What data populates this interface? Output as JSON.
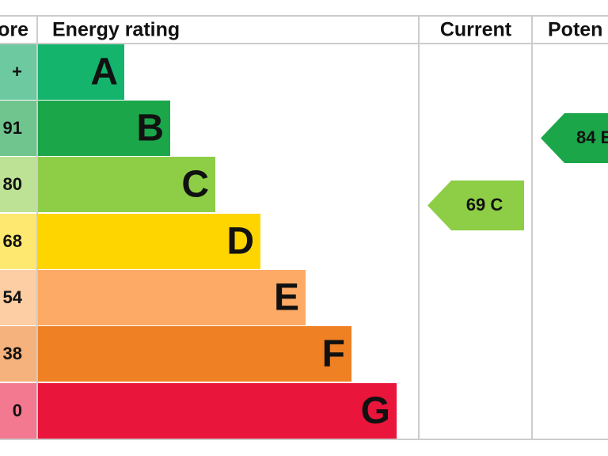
{
  "header": {
    "score": "ore",
    "rating": "Energy rating",
    "current": "Current",
    "potential": "Poten"
  },
  "rows": [
    {
      "score": "+",
      "band": "A"
    },
    {
      "score": "91",
      "band": "B"
    },
    {
      "score": "80",
      "band": "C"
    },
    {
      "score": "68",
      "band": "D"
    },
    {
      "score": "54",
      "band": "E"
    },
    {
      "score": "38",
      "band": "F"
    },
    {
      "score": "0",
      "band": "G"
    }
  ],
  "current": "69 C",
  "potential": "84 B"
}
